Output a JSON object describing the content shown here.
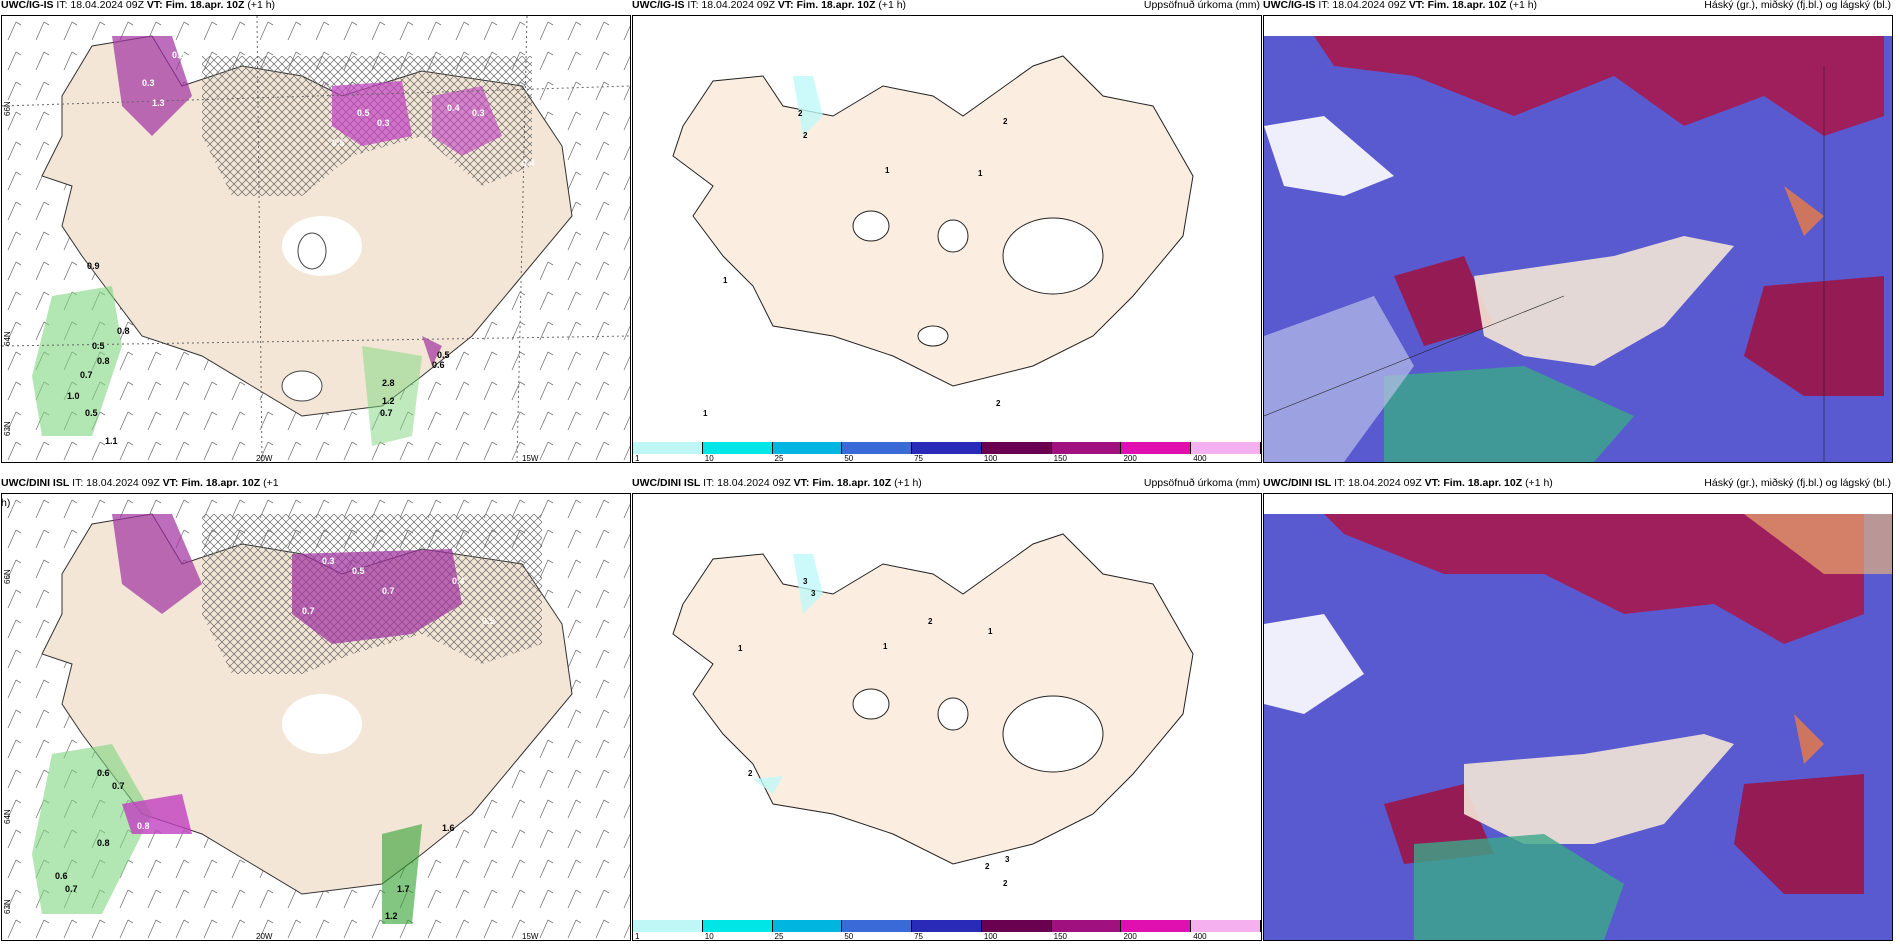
{
  "rows": [
    {
      "panels": [
        {
          "model": "UWC/IG-IS",
          "it": "IT: 18.04.2024 09Z",
          "vt_label": "VT:",
          "vt": "Fim. 18.apr. 10Z",
          "lead": "(+1 h)",
          "right": "",
          "lon1": "20W",
          "lon2": "15W",
          "lat1": "66N",
          "lat2": "64N",
          "lat3": "63N"
        },
        {
          "model": "UWC/IG-IS",
          "it": "IT: 18.04.2024 09Z",
          "vt_label": "VT:",
          "vt": "Fim. 18.apr. 10Z",
          "lead": "(+1 h)",
          "right": "Uppsöfnuð úrkoma (mm)"
        },
        {
          "model": "UWC/IG-IS",
          "it": "IT: 18.04.2024 09Z",
          "vt_label": "VT:",
          "vt": "Fim. 18.apr. 10Z",
          "lead": "(+1 h)",
          "right": "Háský (gr.), miðský (fj.bl.) og lágský (bl.)"
        }
      ]
    },
    {
      "panels": [
        {
          "model": "UWC/DINI ISL",
          "it": "IT: 18.04.2024 09Z",
          "vt_label": "VT:",
          "vt": "Fim. 18.apr. 10Z",
          "lead": "(+1",
          "lead2": "h)",
          "right": "",
          "lon1": "20W",
          "lon2": "15W",
          "lat1": "66N",
          "lat2": "64N",
          "lat3": "63N"
        },
        {
          "model": "UWC/DINI ISL",
          "it": "IT: 18.04.2024 09Z",
          "vt_label": "VT:",
          "vt": "Fim. 18.apr. 10Z",
          "lead": "(+1 h)",
          "right": "Uppsöfnuð úrkoma (mm)"
        },
        {
          "model": "UWC/DINI ISL",
          "it": "IT: 18.04.2024 09Z",
          "vt_label": "VT:",
          "vt": "Fim. 18.apr. 10Z",
          "lead": "(+1 h)",
          "right": "Háský (gr.), miðský (fj.bl.) og lágský (bl.)"
        }
      ]
    }
  ],
  "colorbar": {
    "labels": [
      "1",
      "10",
      "25",
      "50",
      "75",
      "100",
      "150",
      "200",
      "400"
    ],
    "colors": [
      "#bff7f7",
      "#00e5e5",
      "#00b5e0",
      "#3a6ad8",
      "#2a2ab8",
      "#6a0050",
      "#a0107f",
      "#e010b0",
      "#f5b0f0"
    ]
  },
  "precip_labels_top": [
    "0.3",
    "0.3",
    "1.3",
    "0.5",
    "0.3",
    "0.4",
    "0.3",
    "0.5",
    "0.4",
    "0.9",
    "0.8",
    "0.5",
    "0.8",
    "0.7",
    "1.0",
    "0.5",
    "1.1",
    "0.5",
    "0.6",
    "2.8",
    "1.2",
    "0.7"
  ],
  "precip_labels_bottom": [
    "0.3",
    "0.5",
    "0.7",
    "0.4",
    "0.7",
    "0.5",
    "0.8",
    "0.6",
    "0.8",
    "0.7",
    "1.6",
    "0.6",
    "0.7",
    "1.7",
    "1.2"
  ],
  "accum_labels_top": [
    "2",
    "2",
    "1",
    "1",
    "1",
    "1",
    "2",
    "2"
  ],
  "accum_labels_bottom": [
    "3",
    "3",
    "1",
    "2",
    "1",
    "1",
    "2",
    "2",
    "3",
    "2"
  ],
  "colors": {
    "land": "#f3e6d6",
    "sea": "#ffffff",
    "cloud_low": "#5050c0",
    "cloud_high": "#a01040"
  }
}
